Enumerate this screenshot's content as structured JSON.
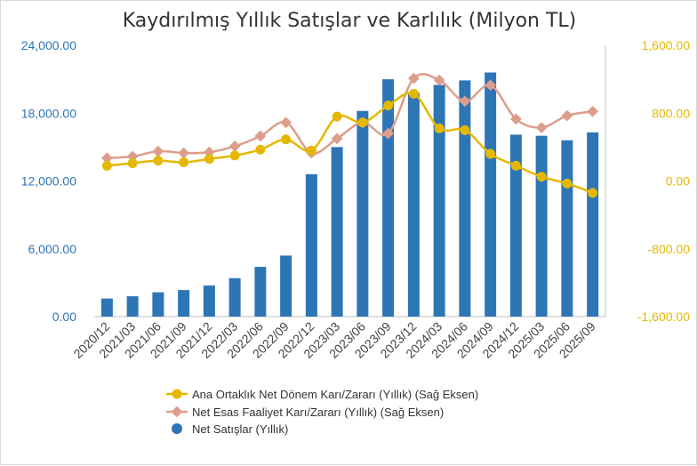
{
  "chart_data": {
    "type": "bar",
    "title": "Kaydırılmış Yıllık Satışlar ve Karlılık (Milyon TL)",
    "categories": [
      "2020/12",
      "2021/03",
      "2021/06",
      "2021/09",
      "2021/12",
      "2022/03",
      "2022/06",
      "2022/09",
      "2022/12",
      "2023/03",
      "2023/06",
      "2023/09",
      "2023/12",
      "2024/03",
      "2024/06",
      "2024/09",
      "2024/12",
      "2025/03",
      "2025/06",
      "2025/09"
    ],
    "left_axis": {
      "ylim": [
        0,
        24000
      ],
      "ticks": [
        "0.00",
        "6,000.00",
        "12,000.00",
        "18,000.00",
        "24,000.00"
      ],
      "tick_values": [
        0,
        6000,
        12000,
        18000,
        24000
      ]
    },
    "right_axis": {
      "ylim": [
        -1600,
        1600
      ],
      "ticks": [
        "-1,600.00",
        "-800.00",
        "0.00",
        "800.00",
        "1,600.00"
      ],
      "tick_values": [
        -1600,
        -800,
        0,
        800,
        1600
      ]
    },
    "series": [
      {
        "name": "Net Satışlar (Yıllık)",
        "type": "bar",
        "axis": "left",
        "color": "#2e75b6",
        "values": [
          1600,
          1800,
          2150,
          2350,
          2750,
          3400,
          4400,
          5400,
          12600,
          15000,
          18200,
          21000,
          19800,
          20500,
          20900,
          21600,
          16100,
          16000,
          15600,
          16300
        ]
      },
      {
        "name": "Ana Ortaklık Net Dönem Karı/Zararı (Yıllık) (Sağ Eksen)",
        "type": "line",
        "axis": "right",
        "color": "#e5b800",
        "values": [
          180,
          210,
          240,
          220,
          260,
          300,
          370,
          490,
          360,
          760,
          690,
          890,
          1030,
          620,
          600,
          320,
          180,
          50,
          -30,
          -140
        ]
      },
      {
        "name": "Net Esas Faaliyet Karı/Zararı (Yıllık) (Sağ Eksen)",
        "type": "line",
        "axis": "right",
        "color": "#dd9d8b",
        "values": [
          270,
          290,
          350,
          330,
          340,
          410,
          530,
          690,
          330,
          500,
          690,
          560,
          1210,
          1190,
          940,
          1130,
          730,
          630,
          770,
          820
        ]
      }
    ],
    "legend_position": "bottom",
    "grid": false
  }
}
